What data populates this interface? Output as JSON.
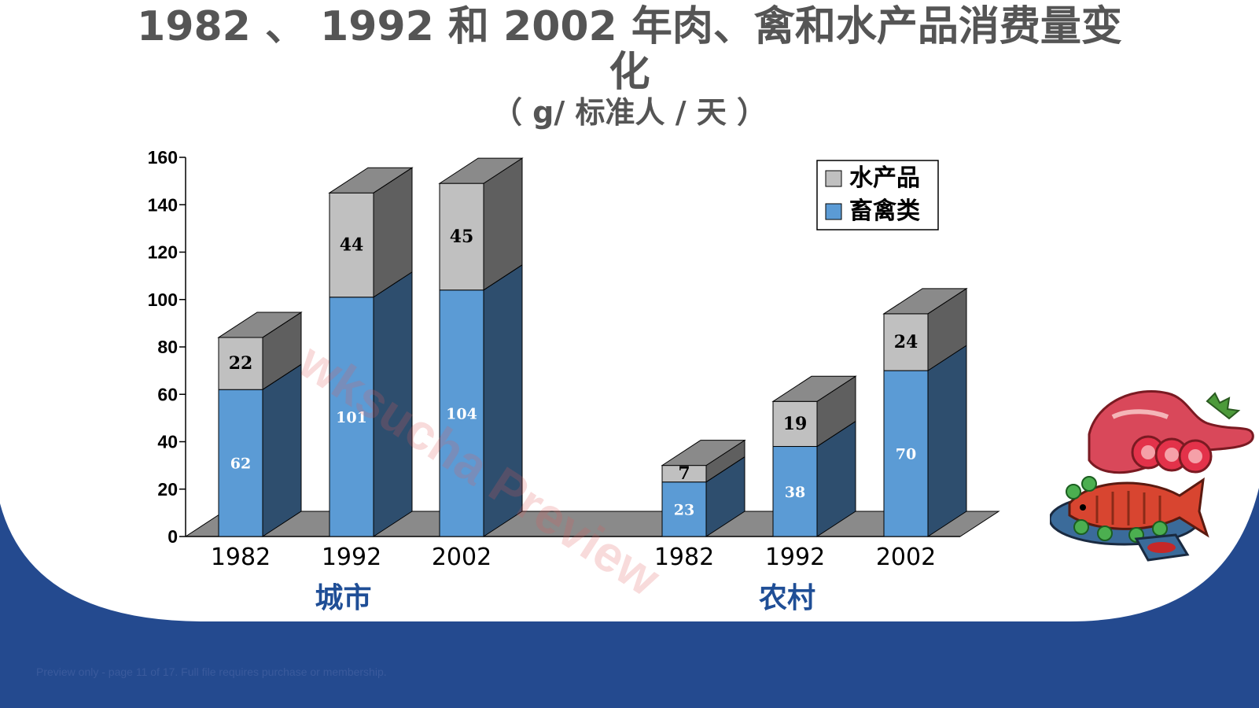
{
  "slide": {
    "title_line1": "1982 、 1992  和 2002 年肉、禽和水产品消费量变",
    "title_line2": "化",
    "subtitle": "（ g/ 标准人 / 天 ）",
    "watermark": "wksucha Preview",
    "footer_note": "Preview only - page 11 of 17. Full file requires purchase or membership."
  },
  "colors": {
    "background_band": "#244a8f",
    "group_label": "#1f4e96",
    "title": "#555555"
  },
  "icons": [
    "meat-fish-illustration"
  ],
  "chart_data": {
    "type": "bar",
    "stacked": true,
    "style": "3d",
    "title": "1982 、 1992  和 2002 年肉、禽和水产品消费量变化",
    "subtitle": "（ g/ 标准人 / 天 ）",
    "ylim": [
      0,
      160
    ],
    "yticks": [
      "0",
      "20",
      "40",
      "60",
      "80",
      "100",
      "120",
      "140",
      "160"
    ],
    "groups": [
      {
        "name": "城市",
        "categories": [
          "1982",
          "1992",
          "2002"
        ]
      },
      {
        "name": "农村",
        "categories": [
          "1982",
          "1992",
          "2002"
        ]
      }
    ],
    "series": [
      {
        "name": "畜禽类",
        "color": "#5b9bd5",
        "values": [
          62,
          101,
          104,
          23,
          38,
          70
        ]
      },
      {
        "name": "水产品",
        "color": "#c0c0c0",
        "values": [
          22,
          44,
          45,
          7,
          19,
          24
        ]
      }
    ],
    "legend_entries": [
      "水产品",
      "畜禽类"
    ],
    "legend_position": "top-right",
    "grid": false
  }
}
